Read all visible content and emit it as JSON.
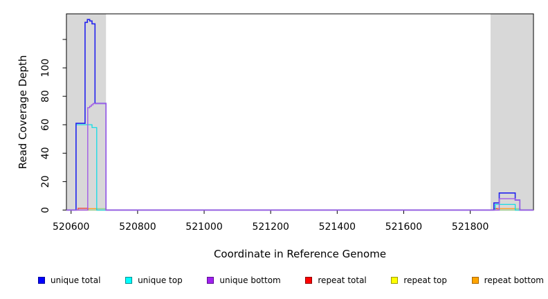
{
  "chart_data": {
    "type": "line",
    "title": "",
    "xlabel": "Coordinate in Reference Genome",
    "ylabel": "Read Coverage Depth",
    "xlim": [
      520586,
      521990
    ],
    "ylim": [
      0,
      138
    ],
    "grid": false,
    "legend_position": "bottom",
    "xticks": {
      "values": [
        520600,
        520800,
        521000,
        521200,
        521400,
        521600,
        521800
      ],
      "labels": [
        "520600",
        "520800",
        "521000",
        "521200",
        "521400",
        "521600",
        "521800"
      ]
    },
    "yticks": {
      "values": [
        0,
        20,
        40,
        60,
        80,
        100,
        120
      ],
      "labels": [
        "0",
        "20",
        "40",
        "60",
        "80",
        "100",
        ""
      ]
    },
    "shaded_regions": [
      {
        "x1": 520586,
        "x2": 520705,
        "color": "#d8d8d8"
      },
      {
        "x1": 521861,
        "x2": 521990,
        "color": "#d8d8d8"
      }
    ],
    "draw_order": [
      3,
      4,
      5,
      1,
      0,
      2
    ],
    "series": [
      {
        "name": "unique total",
        "line_color": "#2222ee",
        "legend_fill": "#0000ff",
        "legend_border": "#00009a",
        "width": 1.6,
        "points": [
          [
            520586,
            0
          ],
          [
            520615,
            0
          ],
          [
            520615,
            61
          ],
          [
            520642,
            61
          ],
          [
            520642,
            132
          ],
          [
            520649,
            132
          ],
          [
            520649,
            134
          ],
          [
            520656,
            134
          ],
          [
            520656,
            133
          ],
          [
            520663,
            133
          ],
          [
            520663,
            131
          ],
          [
            520672,
            131
          ],
          [
            520672,
            75
          ],
          [
            520705,
            75
          ],
          [
            520705,
            0
          ],
          [
            521871,
            0
          ],
          [
            521871,
            5
          ],
          [
            521887,
            5
          ],
          [
            521887,
            12
          ],
          [
            521935,
            12
          ],
          [
            521935,
            7
          ],
          [
            521949,
            7
          ],
          [
            521949,
            0
          ],
          [
            521990,
            0
          ]
        ]
      },
      {
        "name": "unique top",
        "line_color": "#00dde6",
        "legend_fill": "#00ffff",
        "legend_border": "#008b8b",
        "width": 1.2,
        "points": [
          [
            520586,
            0
          ],
          [
            520615,
            0
          ],
          [
            520615,
            60
          ],
          [
            520663,
            60
          ],
          [
            520663,
            58
          ],
          [
            520677,
            58
          ],
          [
            520677,
            0
          ],
          [
            521875,
            0
          ],
          [
            521875,
            4
          ],
          [
            521935,
            4
          ],
          [
            521935,
            0
          ],
          [
            521990,
            0
          ]
        ]
      },
      {
        "name": "unique bottom",
        "line_color": "#a05ae6",
        "legend_fill": "#a020f0",
        "legend_border": "#5c0d8f",
        "width": 1.4,
        "points": [
          [
            520586,
            0
          ],
          [
            520650,
            0
          ],
          [
            520650,
            72
          ],
          [
            520656,
            72
          ],
          [
            520656,
            73
          ],
          [
            520661,
            73
          ],
          [
            520661,
            74
          ],
          [
            520666,
            74
          ],
          [
            520666,
            75
          ],
          [
            520705,
            75
          ],
          [
            520705,
            0
          ],
          [
            521887,
            0
          ],
          [
            521887,
            8
          ],
          [
            521935,
            8
          ],
          [
            521935,
            7
          ],
          [
            521949,
            7
          ],
          [
            521949,
            0
          ],
          [
            521990,
            0
          ]
        ]
      },
      {
        "name": "repeat total",
        "line_color": "#ee3333",
        "legend_fill": "#ff0000",
        "legend_border": "#8b0000",
        "width": 1.2,
        "points": [
          [
            520586,
            0
          ],
          [
            520621,
            0
          ],
          [
            520621,
            1.2
          ],
          [
            520651,
            1.2
          ],
          [
            520651,
            0
          ],
          [
            521871,
            0
          ],
          [
            521871,
            1
          ],
          [
            521887,
            1
          ],
          [
            521887,
            0
          ],
          [
            521990,
            0
          ]
        ]
      },
      {
        "name": "repeat top",
        "line_color": "#8fd88f",
        "legend_fill": "#ffff00",
        "legend_border": "#9a9a00",
        "width": 1.2,
        "points": [
          [
            520586,
            0
          ],
          [
            520677,
            0
          ],
          [
            520677,
            1
          ],
          [
            520705,
            1
          ],
          [
            520705,
            0
          ],
          [
            521935,
            0
          ],
          [
            521935,
            1
          ],
          [
            521950,
            1
          ],
          [
            521950,
            0
          ],
          [
            521990,
            0
          ]
        ]
      },
      {
        "name": "repeat bottom",
        "line_color": "#ffa020",
        "legend_fill": "#ffa500",
        "legend_border": "#a86400",
        "width": 1.2,
        "points": [
          [
            520586,
            0
          ],
          [
            520651,
            0
          ],
          [
            520651,
            1
          ],
          [
            520677,
            1
          ],
          [
            520677,
            0
          ],
          [
            521883,
            0
          ],
          [
            521883,
            1
          ],
          [
            521935,
            1
          ],
          [
            521935,
            0
          ],
          [
            521990,
            0
          ]
        ]
      }
    ]
  }
}
